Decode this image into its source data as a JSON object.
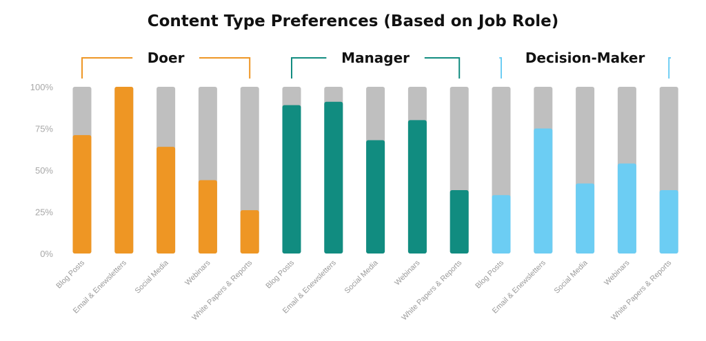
{
  "chart_data": {
    "type": "bar",
    "title": "Content Type Preferences (Based on Job Role)",
    "categories": [
      "Blog Posts",
      "Email & Enewsletters",
      "Social Media",
      "Webinars",
      "White Papers & Reports"
    ],
    "groups": [
      {
        "name": "Doer",
        "color": "#ee9624",
        "values": [
          71,
          100,
          64,
          44,
          26
        ]
      },
      {
        "name": "Manager",
        "color": "#118c80",
        "values": [
          89,
          91,
          68,
          80,
          38
        ]
      },
      {
        "name": "Decision-Maker",
        "color": "#6ccdf3",
        "values": [
          35,
          75,
          42,
          54,
          38
        ]
      }
    ],
    "remainder_color": "#bfbfbf",
    "ylim": [
      0,
      100
    ],
    "yticks": [
      "0%",
      "25%",
      "50%",
      "75%",
      "100%"
    ],
    "grid": false,
    "legend": "group brackets above bars"
  }
}
